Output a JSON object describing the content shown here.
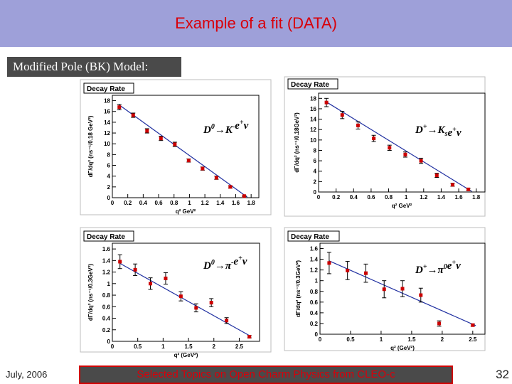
{
  "slide": {
    "title": "Example of a fit (DATA)",
    "model_label": "Modified Pole (BK) Model:",
    "footer_date": "July, 2006",
    "footer_text": "Selected Topics on Open Charm Physics from CLEO-c",
    "page_number": "32",
    "colors": {
      "header": "#9ea0d9",
      "title": "#d8000a",
      "marker": "#cc0000",
      "fit_line": "#1f2fa0",
      "footer_border": "#d00000"
    }
  },
  "chart_data": [
    {
      "type": "scatter",
      "panel_title": "Decay Rate",
      "reaction": "D0→K-e+ν",
      "reaction_parts": {
        "lead": "D",
        "sup1": "0",
        "mid": "→K",
        "sup2": "-",
        "tail": "e",
        "sup3": "+",
        "end": "ν"
      },
      "xlabel": "q² GeV²",
      "ylabel": "dΓ/dq² (ns⁻¹/0.18 GeV²)",
      "xlim": [
        0,
        1.9
      ],
      "ylim": [
        0,
        19
      ],
      "xticks": [
        "0",
        "0.2",
        "0.4",
        "0.6",
        "0.8",
        "1",
        "1.2",
        "1.4",
        "1.6",
        "1.8"
      ],
      "xtick_values": [
        0,
        0.2,
        0.4,
        0.6,
        0.8,
        1.0,
        1.2,
        1.4,
        1.6,
        1.8
      ],
      "yticks": [
        "0",
        "2",
        "4",
        "6",
        "8",
        "10",
        "12",
        "14",
        "16",
        "18"
      ],
      "ytick_values": [
        0,
        2,
        4,
        6,
        8,
        10,
        12,
        14,
        16,
        18
      ],
      "x": [
        0.09,
        0.27,
        0.45,
        0.63,
        0.81,
        0.99,
        1.17,
        1.35,
        1.53,
        1.71
      ],
      "y": [
        16.8,
        15.3,
        12.4,
        11.0,
        9.9,
        6.9,
        5.4,
        3.7,
        2.0,
        0.3
      ],
      "yerr": [
        0.5,
        0.4,
        0.4,
        0.4,
        0.4,
        0.3,
        0.3,
        0.3,
        0.2,
        0.1
      ],
      "fit": {
        "x": [
          0.09,
          1.75
        ],
        "y": [
          17.2,
          0.1
        ]
      }
    },
    {
      "type": "scatter",
      "panel_title": "Decay Rate",
      "reaction": "D+→Kse+ν",
      "reaction_parts": {
        "lead": "D",
        "sup1": "+",
        "mid": "→K",
        "sub": "s",
        "tail": "e",
        "sup3": "+",
        "end": "ν"
      },
      "xlabel": "q² GeV²",
      "ylabel": "dΓ/dq² (ns⁻¹/0.18GeV²)",
      "xlim": [
        0,
        1.9
      ],
      "ylim": [
        0,
        19
      ],
      "xticks": [
        "0",
        "0.2",
        "0.4",
        "0.6",
        "0.8",
        "1",
        "1.2",
        "1.4",
        "1.6",
        "1.8"
      ],
      "xtick_values": [
        0,
        0.2,
        0.4,
        0.6,
        0.8,
        1.0,
        1.2,
        1.4,
        1.6,
        1.8
      ],
      "yticks": [
        "0",
        "2",
        "4",
        "6",
        "8",
        "10",
        "12",
        "14",
        "16",
        "18"
      ],
      "ytick_values": [
        0,
        2,
        4,
        6,
        8,
        10,
        12,
        14,
        16,
        18
      ],
      "x": [
        0.09,
        0.27,
        0.45,
        0.63,
        0.81,
        0.99,
        1.17,
        1.35,
        1.53,
        1.71
      ],
      "y": [
        17.2,
        14.8,
        12.8,
        10.3,
        8.5,
        7.2,
        6.0,
        3.2,
        1.4,
        0.5
      ],
      "yerr": [
        0.8,
        0.7,
        0.7,
        0.6,
        0.5,
        0.5,
        0.5,
        0.4,
        0.3,
        0.2
      ],
      "fit": {
        "x": [
          0.09,
          1.75
        ],
        "y": [
          17.3,
          0.1
        ]
      }
    },
    {
      "type": "scatter",
      "panel_title": "Decay Rate",
      "reaction": "D0→π-e+ν",
      "reaction_parts": {
        "lead": "D",
        "sup1": "0",
        "mid": "→π",
        "sup2": "-",
        "tail": "e",
        "sup3": "+",
        "end": "ν"
      },
      "xlabel": "q² (GeV²)",
      "ylabel": "dΓ/dq² (ns⁻¹/0.3GeV²)",
      "xlim": [
        0,
        2.9
      ],
      "ylim": [
        0,
        1.7
      ],
      "xticks": [
        "0",
        "0.5",
        "1",
        "1.5",
        "2",
        "2.5"
      ],
      "xtick_values": [
        0,
        0.5,
        1.0,
        1.5,
        2.0,
        2.5
      ],
      "yticks": [
        "0",
        "0.2",
        "0.4",
        "0.6",
        "0.8",
        "1",
        "1.2",
        "1.4",
        "1.6"
      ],
      "ytick_values": [
        0,
        0.2,
        0.4,
        0.6,
        0.8,
        1.0,
        1.2,
        1.4,
        1.6
      ],
      "x": [
        0.15,
        0.45,
        0.75,
        1.05,
        1.35,
        1.65,
        1.95,
        2.25,
        2.7
      ],
      "y": [
        1.38,
        1.24,
        1.0,
        1.09,
        0.78,
        0.58,
        0.67,
        0.36,
        0.08
      ],
      "yerr": [
        0.12,
        0.1,
        0.1,
        0.1,
        0.08,
        0.07,
        0.07,
        0.05,
        0.02
      ],
      "fit": {
        "x": [
          0.15,
          2.7
        ],
        "y": [
          1.35,
          0.1
        ]
      }
    },
    {
      "type": "scatter",
      "panel_title": "Decay Rate",
      "reaction": "D+→π0e+ν",
      "reaction_parts": {
        "lead": "D",
        "sup1": "+",
        "mid": "→π",
        "sup2": "0",
        "tail": "e",
        "sup3": "+",
        "end": "ν"
      },
      "xlabel": "q² (GeV²)",
      "ylabel": "dΓ/dq² (ns⁻¹/0.3GeV²)",
      "xlim": [
        0,
        2.7
      ],
      "ylim": [
        0,
        1.7
      ],
      "xticks": [
        "0",
        "0.5",
        "1",
        "1.5",
        "2",
        "2.5"
      ],
      "xtick_values": [
        0,
        0.5,
        1.0,
        1.5,
        2.0,
        2.5
      ],
      "yticks": [
        "0",
        "0.2",
        "0.4",
        "0.6",
        "0.8",
        "1",
        "1.2",
        "1.4",
        "1.6"
      ],
      "ytick_values": [
        0,
        0.2,
        0.4,
        0.6,
        0.8,
        1.0,
        1.2,
        1.4,
        1.6
      ],
      "x": [
        0.15,
        0.45,
        0.75,
        1.05,
        1.35,
        1.65,
        1.95,
        2.5
      ],
      "y": [
        1.33,
        1.19,
        1.14,
        0.84,
        0.85,
        0.73,
        0.2,
        0.17
      ],
      "yerr": [
        0.2,
        0.17,
        0.17,
        0.16,
        0.15,
        0.13,
        0.05,
        0.02
      ],
      "fit": {
        "x": [
          0.15,
          2.55
        ],
        "y": [
          1.37,
          0.16
        ]
      }
    }
  ]
}
